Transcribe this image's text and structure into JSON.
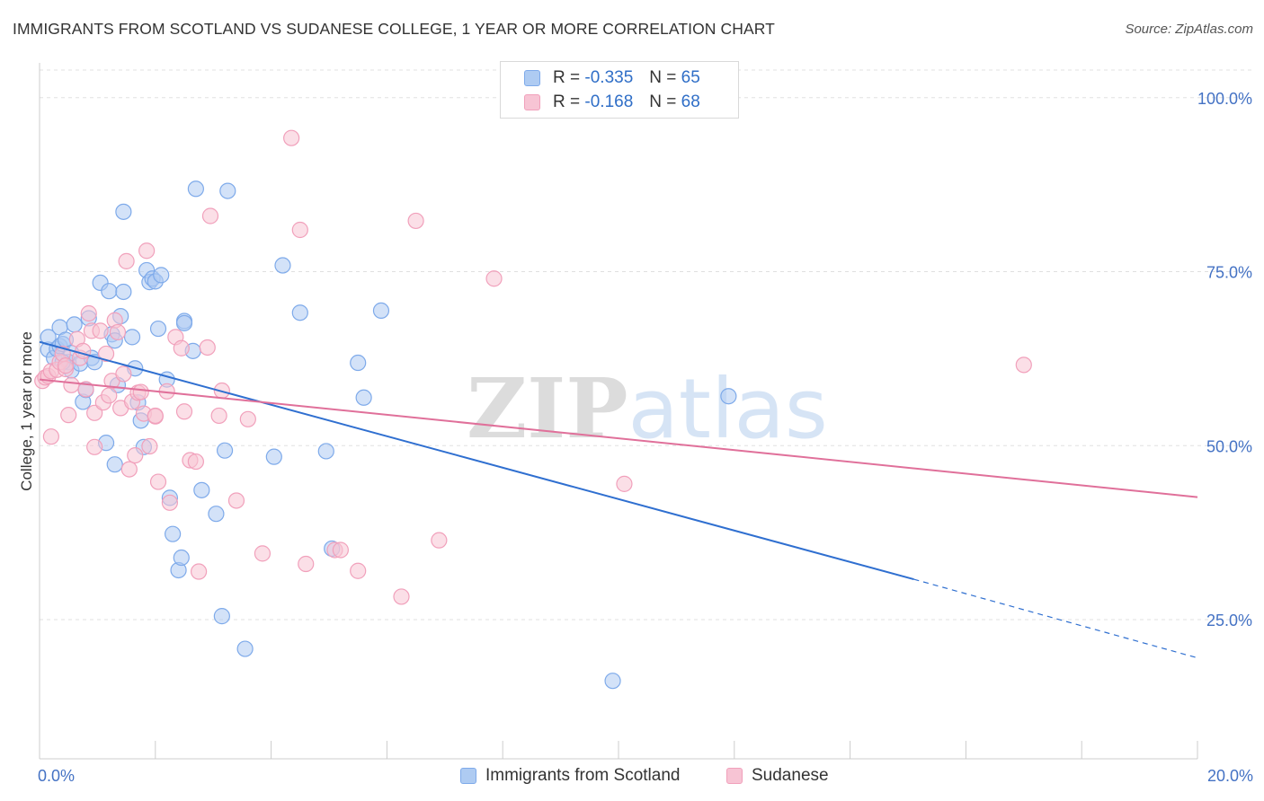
{
  "header": {
    "title": "IMMIGRANTS FROM SCOTLAND VS SUDANESE COLLEGE, 1 YEAR OR MORE CORRELATION CHART",
    "source": "Source: ZipAtlas.com"
  },
  "watermark": "ZIPatlas",
  "legend": {
    "rows": [
      {
        "r_label": "R =",
        "r_value": "-0.335",
        "n_label": "N =",
        "n_value": "65",
        "color": "#7eaaea"
      },
      {
        "r_label": "R =",
        "r_value": "-0.168",
        "n_label": "N =",
        "n_value": "68",
        "color": "#f1a0bb"
      }
    ]
  },
  "bottom_legend": [
    {
      "label": "Immigrants from Scotland",
      "color": "#7eaaea"
    },
    {
      "label": "Sudanese",
      "color": "#f1a0bb"
    }
  ],
  "colors": {
    "scotland_fill": "#aecbf2",
    "scotland_stroke": "#7eaaea",
    "scotland_line": "#2f6fd0",
    "sudanese_fill": "#f7c4d4",
    "sudanese_stroke": "#f1a0bb",
    "sudanese_line": "#e0709a",
    "grid": "#e0e0e0",
    "tick_text": "#4472c4"
  },
  "chart_data": {
    "type": "scatter",
    "title": "IMMIGRANTS FROM SCOTLAND VS SUDANESE COLLEGE, 1 YEAR OR MORE CORRELATION CHART",
    "xlabel": "",
    "ylabel": "College, 1 year or more",
    "xlim": [
      0,
      20
    ],
    "ylim": [
      5,
      105
    ],
    "x_ticks": [
      {
        "value": 0,
        "label": "0.0%"
      },
      {
        "value": 20,
        "label": "20.0%"
      }
    ],
    "y_ticks": [
      {
        "value": 25,
        "label": "25.0%"
      },
      {
        "value": 50,
        "label": "50.0%"
      },
      {
        "value": 75,
        "label": "75.0%"
      },
      {
        "value": 100,
        "label": "100.0%"
      }
    ],
    "grid": "horizontal dashed",
    "legend_position": "top-center",
    "series": [
      {
        "name": "Immigrants from Scotland",
        "R": -0.335,
        "N": 65,
        "trend": {
          "x0": 0,
          "y0": 64.9,
          "x1": 15.1,
          "y1": 30.8,
          "dashed_to_x": 20,
          "dashed_to_y": 19.5
        },
        "points": [
          [
            0.15,
            63.8
          ],
          [
            0.15,
            65.6
          ],
          [
            0.25,
            62.6
          ],
          [
            0.3,
            63.9
          ],
          [
            0.35,
            64.3
          ],
          [
            0.35,
            67.0
          ],
          [
            0.4,
            64.6
          ],
          [
            0.45,
            65.2
          ],
          [
            0.5,
            62.0
          ],
          [
            0.55,
            63.3
          ],
          [
            0.55,
            60.8
          ],
          [
            0.6,
            67.4
          ],
          [
            0.7,
            61.8
          ],
          [
            0.75,
            56.3
          ],
          [
            0.8,
            58.0
          ],
          [
            0.85,
            68.3
          ],
          [
            0.9,
            62.6
          ],
          [
            1.05,
            73.4
          ],
          [
            1.15,
            50.4
          ],
          [
            1.2,
            72.2
          ],
          [
            1.25,
            66.0
          ],
          [
            1.3,
            47.3
          ],
          [
            1.35,
            58.7
          ],
          [
            1.3,
            65.1
          ],
          [
            1.4,
            68.6
          ],
          [
            1.45,
            83.6
          ],
          [
            1.45,
            72.1
          ],
          [
            1.6,
            65.6
          ],
          [
            1.65,
            61.1
          ],
          [
            1.7,
            56.2
          ],
          [
            1.75,
            53.6
          ],
          [
            1.8,
            49.8
          ],
          [
            1.85,
            75.2
          ],
          [
            1.9,
            73.5
          ],
          [
            1.95,
            74.0
          ],
          [
            2.0,
            73.6
          ],
          [
            2.05,
            66.8
          ],
          [
            2.1,
            74.5
          ],
          [
            2.2,
            59.5
          ],
          [
            2.25,
            42.5
          ],
          [
            2.3,
            37.3
          ],
          [
            2.4,
            32.1
          ],
          [
            2.45,
            33.9
          ],
          [
            2.5,
            67.9
          ],
          [
            2.5,
            67.6
          ],
          [
            2.65,
            63.6
          ],
          [
            2.7,
            86.9
          ],
          [
            2.8,
            43.6
          ],
          [
            3.05,
            40.2
          ],
          [
            3.15,
            25.5
          ],
          [
            3.2,
            49.3
          ],
          [
            3.25,
            86.6
          ],
          [
            3.55,
            20.8
          ],
          [
            4.05,
            48.4
          ],
          [
            4.2,
            75.9
          ],
          [
            4.5,
            69.1
          ],
          [
            4.95,
            49.2
          ],
          [
            5.05,
            35.2
          ],
          [
            5.5,
            61.9
          ],
          [
            5.6,
            56.9
          ],
          [
            5.9,
            69.4
          ],
          [
            9.9,
            16.2
          ],
          [
            11.9,
            57.1
          ],
          [
            0.4,
            62.0
          ],
          [
            0.95,
            62.0
          ]
        ]
      },
      {
        "name": "Sudanese",
        "R": -0.168,
        "N": 68,
        "trend": {
          "x0": 0,
          "y0": 59.5,
          "x1": 20,
          "y1": 42.6
        },
        "points": [
          [
            0.05,
            59.3
          ],
          [
            0.1,
            59.8
          ],
          [
            0.15,
            60.0
          ],
          [
            0.2,
            60.7
          ],
          [
            0.2,
            51.3
          ],
          [
            0.3,
            60.9
          ],
          [
            0.35,
            62.0
          ],
          [
            0.4,
            63.2
          ],
          [
            0.45,
            61.0
          ],
          [
            0.45,
            61.5
          ],
          [
            0.5,
            54.4
          ],
          [
            0.55,
            58.7
          ],
          [
            0.65,
            65.3
          ],
          [
            0.7,
            62.6
          ],
          [
            0.75,
            63.6
          ],
          [
            0.8,
            58.1
          ],
          [
            0.85,
            69.0
          ],
          [
            0.9,
            66.5
          ],
          [
            0.95,
            54.7
          ],
          [
            0.95,
            49.8
          ],
          [
            1.05,
            66.5
          ],
          [
            1.1,
            56.2
          ],
          [
            1.15,
            63.2
          ],
          [
            1.2,
            57.2
          ],
          [
            1.25,
            59.3
          ],
          [
            1.3,
            68.0
          ],
          [
            1.35,
            66.3
          ],
          [
            1.4,
            55.4
          ],
          [
            1.45,
            60.3
          ],
          [
            1.5,
            76.5
          ],
          [
            1.55,
            46.6
          ],
          [
            1.6,
            56.3
          ],
          [
            1.65,
            48.6
          ],
          [
            1.7,
            57.6
          ],
          [
            1.75,
            57.7
          ],
          [
            1.8,
            54.6
          ],
          [
            1.85,
            78.0
          ],
          [
            1.9,
            49.9
          ],
          [
            2.0,
            54.2
          ],
          [
            2.0,
            54.3
          ],
          [
            2.05,
            44.8
          ],
          [
            2.2,
            57.8
          ],
          [
            2.25,
            41.8
          ],
          [
            2.35,
            65.6
          ],
          [
            2.45,
            64.0
          ],
          [
            2.5,
            54.9
          ],
          [
            2.6,
            47.9
          ],
          [
            2.7,
            47.7
          ],
          [
            2.75,
            31.9
          ],
          [
            2.9,
            64.1
          ],
          [
            2.95,
            83.0
          ],
          [
            3.1,
            54.3
          ],
          [
            3.15,
            57.9
          ],
          [
            3.4,
            42.1
          ],
          [
            3.6,
            53.8
          ],
          [
            3.85,
            34.5
          ],
          [
            4.35,
            94.2
          ],
          [
            4.5,
            81.0
          ],
          [
            4.6,
            33.0
          ],
          [
            5.1,
            35.0
          ],
          [
            5.2,
            35.0
          ],
          [
            5.5,
            32.0
          ],
          [
            6.25,
            28.3
          ],
          [
            6.5,
            82.3
          ],
          [
            6.9,
            36.4
          ],
          [
            7.85,
            74.0
          ],
          [
            10.1,
            44.5
          ],
          [
            17.0,
            61.6
          ]
        ]
      }
    ]
  }
}
